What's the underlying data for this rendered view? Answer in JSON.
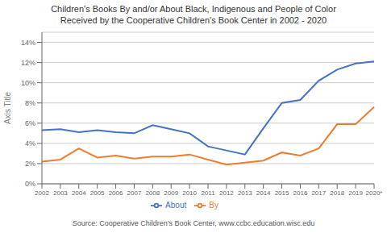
{
  "chart_data": {
    "type": "line",
    "title": "Children's Books By and/or About Black, Indigenous and People of Color",
    "subtitle": "Received by the Cooperative Children's Book Center in 2002 - 2020",
    "annotations": [
      "Source: Cooperative Children's Book Center, www.ccbc.education.wisc.edu"
    ],
    "categories": [
      "2002",
      "2003",
      "2004",
      "2005",
      "2006",
      "2007",
      "2008",
      "2009",
      "2010",
      "2011",
      "2012",
      "2013",
      "2014",
      "2015",
      "2016",
      "2017",
      "2018",
      "2019",
      "2020*"
    ],
    "series": [
      {
        "name": "About",
        "color": "#4472C4",
        "values": [
          0.053,
          0.054,
          0.051,
          0.053,
          0.051,
          0.05,
          0.058,
          0.054,
          0.05,
          0.037,
          0.033,
          0.029,
          0.055,
          0.08,
          0.083,
          0.102,
          0.113,
          0.119,
          0.121
        ]
      },
      {
        "name": "By",
        "color": "#ED7D31",
        "values": [
          0.022,
          0.024,
          0.035,
          0.026,
          0.028,
          0.025,
          0.027,
          0.027,
          0.029,
          0.024,
          0.019,
          0.021,
          0.023,
          0.031,
          0.028,
          0.035,
          0.059,
          0.059,
          0.076
        ]
      }
    ],
    "y_label": "Axis Title",
    "ylim": [
      0,
      0.15
    ],
    "yticks": [
      {
        "value": 0,
        "label": "0%"
      },
      {
        "value": 0.02,
        "label": "2%"
      },
      {
        "value": 0.04,
        "label": "4%"
      },
      {
        "value": 0.06,
        "label": "6%"
      },
      {
        "value": 0.08,
        "label": "8%"
      },
      {
        "value": 0.1,
        "label": "10%"
      },
      {
        "value": 0.12,
        "label": "12%"
      },
      {
        "value": 0.14,
        "label": "14%"
      }
    ],
    "grid": true,
    "legend": "bottom"
  }
}
